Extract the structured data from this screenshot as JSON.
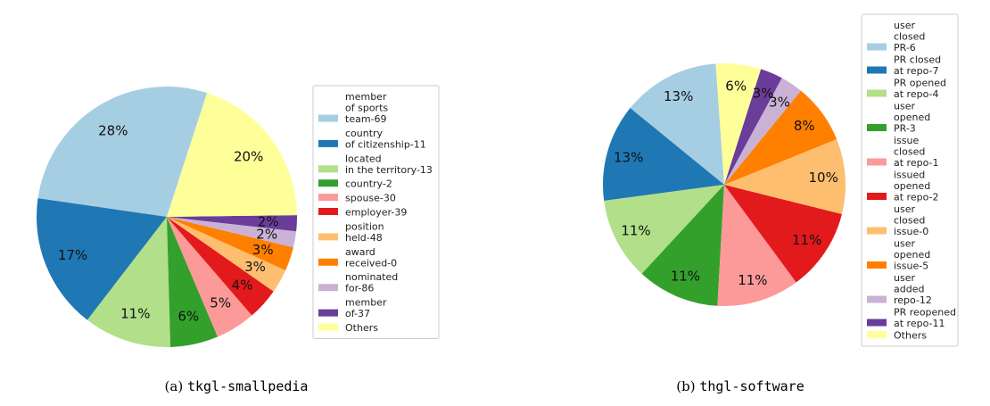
{
  "chart_data": [
    {
      "type": "pie",
      "caption_prefix": "(a)",
      "caption_name": "tkgl-smallpedia",
      "slices": [
        {
          "label": "member\nof sports\nteam-69",
          "value": 28,
          "pct_label": "28%",
          "color": "#a6cee3"
        },
        {
          "label": "country\nof citizenship-11",
          "value": 17,
          "pct_label": "17%",
          "color": "#1f78b4"
        },
        {
          "label": "located\nin the territory-13",
          "value": 11,
          "pct_label": "11%",
          "color": "#b2df8a"
        },
        {
          "label": "country-2",
          "value": 6,
          "pct_label": "6%",
          "color": "#33a02c"
        },
        {
          "label": "spouse-30",
          "value": 5,
          "pct_label": "5%",
          "color": "#fb9a99"
        },
        {
          "label": "employer-39",
          "value": 4,
          "pct_label": "4%",
          "color": "#e31a1c"
        },
        {
          "label": "position\nheld-48",
          "value": 3,
          "pct_label": "3%",
          "color": "#fdbf6f"
        },
        {
          "label": "award\nreceived-0",
          "value": 3,
          "pct_label": "3%",
          "color": "#ff7f00"
        },
        {
          "label": "nominated\nfor-86",
          "value": 2,
          "pct_label": "2%",
          "color": "#cab2d6"
        },
        {
          "label": "member\nof-37",
          "value": 2,
          "pct_label": "2%",
          "color": "#6a3d9a"
        },
        {
          "label": "Others",
          "value": 20,
          "pct_label": "20%",
          "color": "#ffff99"
        }
      ]
    },
    {
      "type": "pie",
      "caption_prefix": "(b)",
      "caption_name": "thgl-software",
      "slices": [
        {
          "label": "user\nclosed\nPR-6",
          "value": 13,
          "pct_label": "13%",
          "color": "#a6cee3"
        },
        {
          "label": "PR closed\nat repo-7",
          "value": 13,
          "pct_label": "13%",
          "color": "#1f78b4"
        },
        {
          "label": "PR opened\nat repo-4",
          "value": 11,
          "pct_label": "11%",
          "color": "#b2df8a"
        },
        {
          "label": "user\nopened\nPR-3",
          "value": 11,
          "pct_label": "11%",
          "color": "#33a02c"
        },
        {
          "label": "issue\nclosed\nat repo-1",
          "value": 11,
          "pct_label": "11%",
          "color": "#fb9a99"
        },
        {
          "label": "issued\nopened\nat repo-2",
          "value": 11,
          "pct_label": "11%",
          "color": "#e31a1c"
        },
        {
          "label": "user\nclosed\nissue-0",
          "value": 10,
          "pct_label": "10%",
          "color": "#fdbf6f"
        },
        {
          "label": "user\nopened\nissue-5",
          "value": 8,
          "pct_label": "8%",
          "color": "#ff7f00"
        },
        {
          "label": "user\nadded\nrepo-12",
          "value": 3,
          "pct_label": "3%",
          "color": "#cab2d6"
        },
        {
          "label": "PR reopened\nat repo-11",
          "value": 3,
          "pct_label": "3%",
          "color": "#6a3d9a"
        },
        {
          "label": "Others",
          "value": 6,
          "pct_label": "6%",
          "color": "#ffff99"
        }
      ]
    }
  ]
}
